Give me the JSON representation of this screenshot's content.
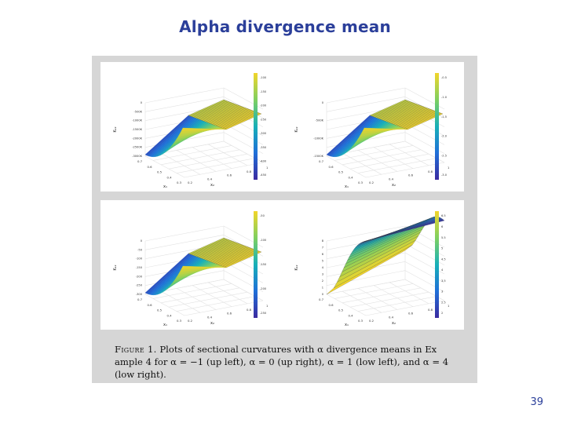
{
  "slide": {
    "title": "Alpha divergence mean",
    "page_number": "39"
  },
  "caption": {
    "label": "Figure 1.",
    "text": "Plots of sectional curvatures with α divergence means in Ex ample 4 for α = −1 (up left), α = 0 (up right), α = 1 (low left), and α = 4 (low right)."
  },
  "plots": [
    {
      "id": "up-left",
      "alpha": "−1",
      "z_label": "K₁₂",
      "x_label": "x₁",
      "y_label": "x₂",
      "z_ticks": [
        "0",
        "-500K",
        "-1000K",
        "-1500K",
        "-2000K",
        "-2500K",
        "-3000K"
      ],
      "colorbar_ticks": [
        "-100",
        "-150",
        "-200",
        "-250",
        "-300",
        "-350",
        "-400",
        "-450"
      ],
      "colors": [
        "#3b2aa0",
        "#1f6fd8",
        "#17b0b8",
        "#7fd060",
        "#f2d52a"
      ]
    },
    {
      "id": "up-right",
      "alpha": "0",
      "z_label": "K₁₂",
      "x_label": "x₁",
      "y_label": "x₂",
      "z_ticks": [
        "0",
        "-500K",
        "-1000K",
        "-1500K"
      ],
      "colorbar_ticks": [
        "-0.5",
        "-1.0",
        "-1.5",
        "-2.0",
        "-2.5",
        "-3.0"
      ],
      "colors": [
        "#3b2aa0",
        "#1f6fd8",
        "#17b0b8",
        "#7fd060",
        "#f2d52a"
      ]
    },
    {
      "id": "low-left",
      "alpha": "1",
      "z_label": "K₁₂",
      "x_label": "x₁",
      "y_label": "x₂",
      "z_ticks": [
        "0",
        "-50",
        "-100",
        "-150",
        "-200",
        "-250",
        "-300"
      ],
      "colorbar_ticks": [
        "-50",
        "-100",
        "-150",
        "-200",
        "-250"
      ],
      "colors": [
        "#3b2aa0",
        "#1f6fd8",
        "#17b0b8",
        "#7fd060",
        "#f2d52a"
      ]
    },
    {
      "id": "low-right",
      "alpha": "4",
      "z_label": "K₁₂",
      "x_label": "x₁",
      "y_label": "x₂",
      "z_ticks": [
        "8",
        "7",
        "6",
        "5",
        "4",
        "3",
        "2",
        "1",
        "0"
      ],
      "colorbar_ticks": [
        "6.5",
        "6",
        "5.5",
        "5",
        "4.5",
        "4",
        "3.5",
        "3",
        "2.5",
        "2"
      ],
      "colors": [
        "#3b2aa0",
        "#1f6fd8",
        "#17b0b8",
        "#7fd060",
        "#f2d52a"
      ]
    }
  ],
  "axis_ticks": {
    "x1": [
      "0.7",
      "0.6",
      "0.5",
      "0.4",
      "0.3"
    ],
    "x2": [
      "0.2",
      "0.4",
      "0.6",
      "0.8",
      "1"
    ]
  }
}
